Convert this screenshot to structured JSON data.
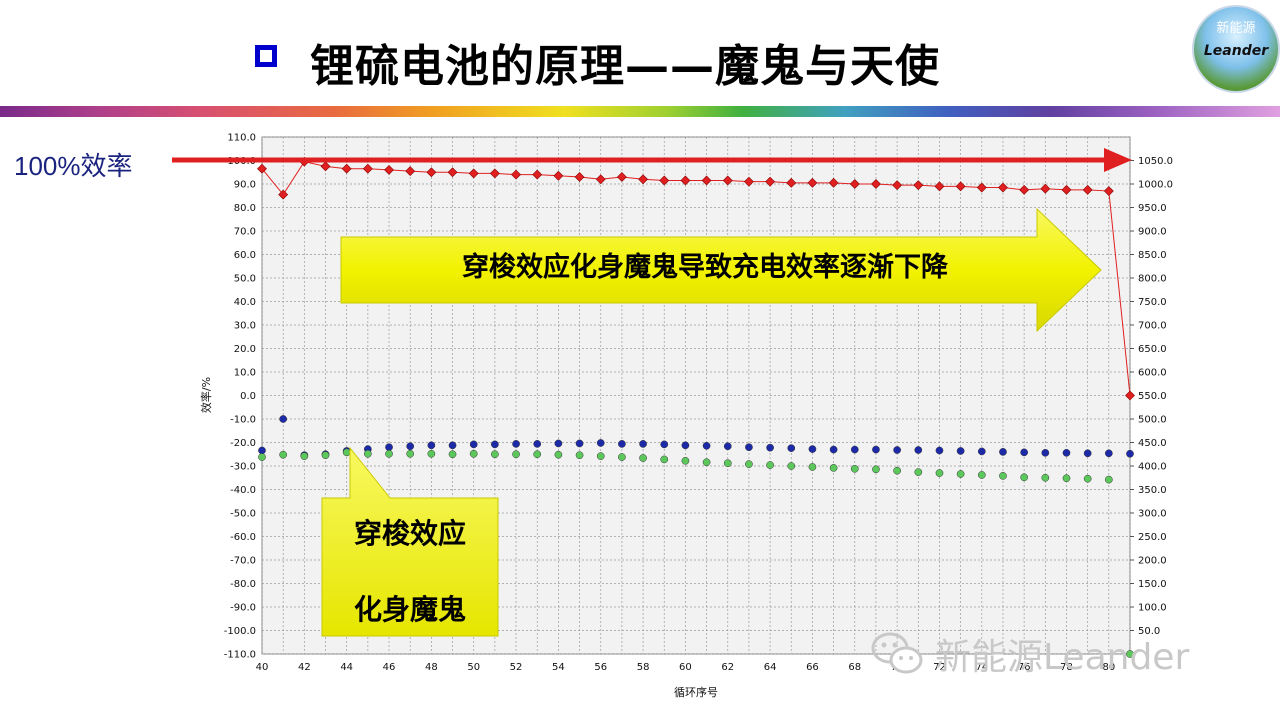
{
  "slide": {
    "title": "锂硫电池的原理——魔鬼与天使",
    "efficiency_label": "100%效率",
    "arrow_text": "穿梭效应化身魔鬼导致充电效率逐渐下降",
    "callout_line1": "穿梭效应",
    "callout_line2": "化身魔鬼",
    "logo_top": "新能源",
    "logo_text": "Leander",
    "watermark": "新能源Leander"
  },
  "colors": {
    "title_box": "#0000cc",
    "arrow_red": "#e02020",
    "arrow_yellow": "#f2f200",
    "series_red": "#e02020",
    "series_blue": "#1c2aa8",
    "series_green": "#5cc85c"
  },
  "chart_data": {
    "type": "scatter",
    "title": "",
    "xlabel": "循环序号",
    "ylabel": "效率/%",
    "xlim": [
      40,
      81
    ],
    "ylim": [
      -110,
      110
    ],
    "y2lim": [
      0,
      1100
    ],
    "grid": true,
    "x_ticks": [
      "40",
      "42",
      "44",
      "46",
      "48",
      "50",
      "52",
      "54",
      "56",
      "58",
      "60",
      "62",
      "64",
      "66",
      "68",
      "70",
      "72",
      "74",
      "76",
      "78",
      "80"
    ],
    "y_ticks": [
      "110.0",
      "100.0",
      "90.0",
      "80.0",
      "70.0",
      "60.0",
      "50.0",
      "40.0",
      "30.0",
      "20.0",
      "10.0",
      "0.0",
      "-10.0",
      "-20.0",
      "-30.0",
      "-40.0",
      "-50.0",
      "-60.0",
      "-70.0",
      "-80.0",
      "-90.0",
      "-100.0",
      "-110.0"
    ],
    "y2_ticks": [
      "1050.0",
      "1000.0",
      "950.0",
      "900.0",
      "850.0",
      "800.0",
      "750.0",
      "700.0",
      "650.0",
      "600.0",
      "550.0",
      "500.0",
      "450.0",
      "400.0",
      "350.0",
      "300.0",
      "250.0",
      "200.0",
      "150.0",
      "100.0",
      "50.0"
    ],
    "series": [
      {
        "axis": "left",
        "marker": "diamond",
        "line": true,
        "x": [
          40,
          41,
          42,
          43,
          44,
          45,
          46,
          47,
          48,
          49,
          50,
          51,
          52,
          53,
          54,
          55,
          56,
          57,
          58,
          59,
          60,
          61,
          62,
          63,
          64,
          65,
          66,
          67,
          68,
          69,
          70,
          71,
          72,
          73,
          74,
          75,
          76,
          77,
          78,
          79,
          80,
          81
        ],
        "values": [
          96.5,
          85.5,
          99.5,
          97.5,
          96.5,
          96.5,
          96,
          95.5,
          95,
          95,
          94.5,
          94.5,
          94,
          94,
          93.5,
          93,
          92,
          93,
          92,
          91.5,
          91.5,
          91.5,
          91.5,
          91,
          91,
          90.5,
          90.5,
          90.5,
          90,
          90,
          89.5,
          89.5,
          89,
          89,
          88.5,
          88.5,
          87.5,
          88,
          87.5,
          87.5,
          87,
          0
        ]
      },
      {
        "axis": "right",
        "marker": "circle",
        "line": false,
        "x": [
          40,
          41,
          42,
          43,
          44,
          45,
          46,
          47,
          48,
          49,
          50,
          51,
          52,
          53,
          54,
          55,
          56,
          57,
          58,
          59,
          60,
          61,
          62,
          63,
          64,
          65,
          66,
          67,
          68,
          69,
          70,
          71,
          72,
          73,
          74,
          75,
          76,
          77,
          78,
          79,
          80,
          81
        ],
        "values": [
          433,
          500,
          423,
          425,
          432,
          436,
          440,
          442,
          444,
          444,
          446,
          446,
          447,
          447,
          448,
          448,
          449,
          447,
          447,
          446,
          444,
          443,
          442,
          440,
          439,
          438,
          436,
          435,
          435,
          435,
          434,
          434,
          433,
          432,
          431,
          430,
          429,
          428,
          428,
          427,
          427,
          426
        ]
      },
      {
        "axis": "right",
        "marker": "circle",
        "line": false,
        "x": [
          40,
          41,
          42,
          43,
          44,
          45,
          46,
          47,
          48,
          49,
          50,
          51,
          52,
          53,
          54,
          55,
          56,
          57,
          58,
          59,
          60,
          61,
          62,
          63,
          64,
          65,
          66,
          67,
          68,
          69,
          70,
          71,
          72,
          73,
          74,
          75,
          76,
          77,
          78,
          79,
          80,
          81
        ],
        "values": [
          419,
          424,
          421,
          423,
          429,
          426,
          426,
          426,
          426,
          425,
          426,
          425,
          425,
          425,
          424,
          423,
          421,
          419,
          417,
          414,
          411,
          408,
          406,
          404,
          402,
          400,
          398,
          396,
          394,
          393,
          390,
          387,
          385,
          383,
          381,
          379,
          376,
          375,
          374,
          373,
          371,
          0
        ]
      }
    ]
  }
}
